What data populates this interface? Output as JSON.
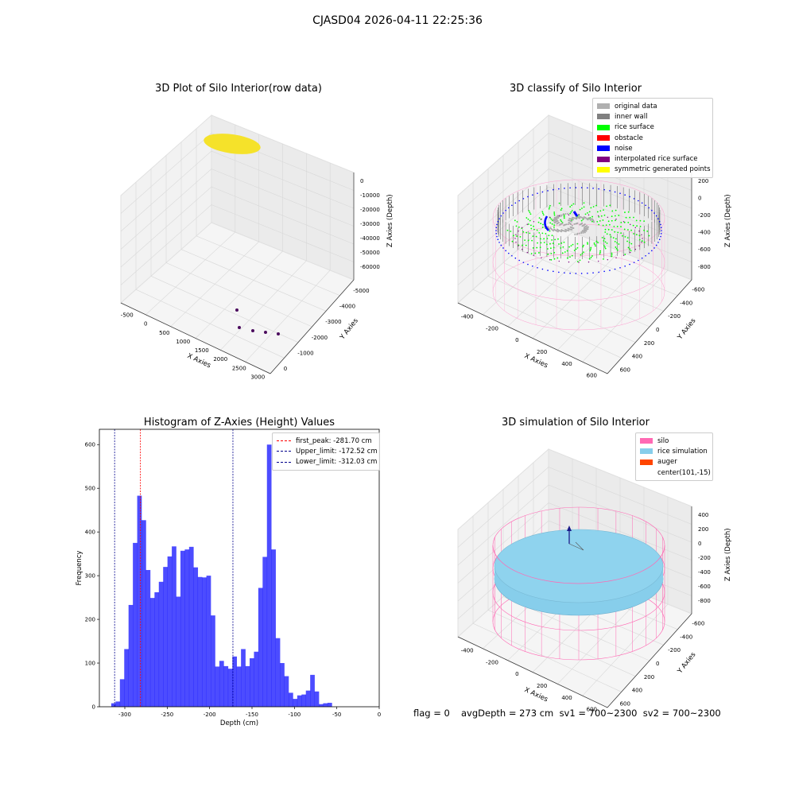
{
  "suptitle": "CJASD04 2026-04-11 22:25:36",
  "chart_data": [
    {
      "type": "scatter",
      "title": "3D Plot of Silo Interior(row data)",
      "xlabel": "X Axies",
      "ylabel": "Y Axies",
      "zlabel": "Z Axies (Depth)",
      "x_ticks": [
        "-500",
        "0",
        "500",
        "1000",
        "1500",
        "2000",
        "2500",
        "3000"
      ],
      "y_ticks": [
        "0",
        "-1000",
        "-2000",
        "-3000",
        "-4000",
        "-5000"
      ],
      "z_ticks": [
        "0",
        "-10000",
        "-20000",
        "-30000",
        "-40000",
        "-50000",
        "-60000"
      ],
      "colors": {
        "cluster": "#f5e22a",
        "outliers": "#4b0c5e"
      }
    },
    {
      "type": "scatter",
      "title": "3D classify of Silo Interior",
      "xlabel": "X Axies",
      "ylabel": "Y Axies",
      "zlabel": "Z Axies (Depth)",
      "x_ticks": [
        "-400",
        "-200",
        "0",
        "200",
        "400",
        "600"
      ],
      "y_ticks": [
        "600",
        "400",
        "200",
        "0",
        "-200",
        "-400",
        "-600"
      ],
      "z_ticks": [
        "200",
        "0",
        "-200",
        "-400",
        "-600",
        "-800"
      ],
      "legend": [
        {
          "label": "original data",
          "color": "#b0b0b0"
        },
        {
          "label": "inner wall",
          "color": "#808080"
        },
        {
          "label": "rice surface",
          "color": "#00ff00"
        },
        {
          "label": "obstacle",
          "color": "#ff0000"
        },
        {
          "label": "noise",
          "color": "#0000ff"
        },
        {
          "label": "interpolated rice surface",
          "color": "#800080"
        },
        {
          "label": "symmetric generated points",
          "color": "#ffff00"
        }
      ]
    },
    {
      "type": "bar",
      "title": "Histogram of Z-Axies (Height) Values",
      "xlabel": "Depth (cm)",
      "ylabel": "Frequency",
      "xlim": [
        -330,
        0
      ],
      "ylim": [
        0,
        635
      ],
      "x_ticks": [
        -300,
        -250,
        -200,
        -150,
        -100,
        -50,
        0
      ],
      "y_ticks": [
        0,
        100,
        200,
        300,
        400,
        500,
        600
      ],
      "bin_start": -316,
      "bin_width": 5.1,
      "values": [
        8,
        12,
        63,
        132,
        233,
        375,
        483,
        427,
        313,
        249,
        262,
        286,
        320,
        344,
        367,
        252,
        357,
        360,
        366,
        319,
        297,
        296,
        300,
        209,
        92,
        105,
        93,
        87,
        115,
        92,
        132,
        93,
        111,
        126,
        272,
        343,
        600,
        360,
        157,
        100,
        70,
        32,
        18,
        26,
        28,
        37,
        73,
        35,
        6,
        8,
        9
      ],
      "bar_color": "#0000ff",
      "lines": [
        {
          "label": "first_peak: -281.70 cm",
          "value": -281.7,
          "color": "#ff0000"
        },
        {
          "label": "Upper_limit: -172.52 cm",
          "value": -172.52,
          "color": "#00008b"
        },
        {
          "label": "Lower_limit: -312.03 cm",
          "value": -312.03,
          "color": "#00008b"
        }
      ]
    },
    {
      "type": "scatter",
      "title": "3D simulation of Silo Interior",
      "xlabel": "X Axies",
      "ylabel": "Y Axies",
      "zlabel": "Z Axies (Depth)",
      "x_ticks": [
        "-400",
        "-200",
        "0",
        "200",
        "400",
        "600"
      ],
      "y_ticks": [
        "600",
        "400",
        "200",
        "0",
        "-200",
        "-400",
        "-600"
      ],
      "z_ticks": [
        "400",
        "200",
        "0",
        "-200",
        "-400",
        "-600",
        "-800"
      ],
      "legend": [
        {
          "label": "silo",
          "color": "#ff69b4"
        },
        {
          "label": "rice simulation",
          "color": "#87ceeb"
        },
        {
          "label": "auger",
          "color": "#ff4500"
        },
        {
          "label": "center(101,-15)",
          "color": ""
        }
      ]
    }
  ],
  "footer": {
    "flag": "flag = 0",
    "stats": "avgDepth = 273 cm  sv1 = 700~2300  sv2 = 700~2300"
  }
}
